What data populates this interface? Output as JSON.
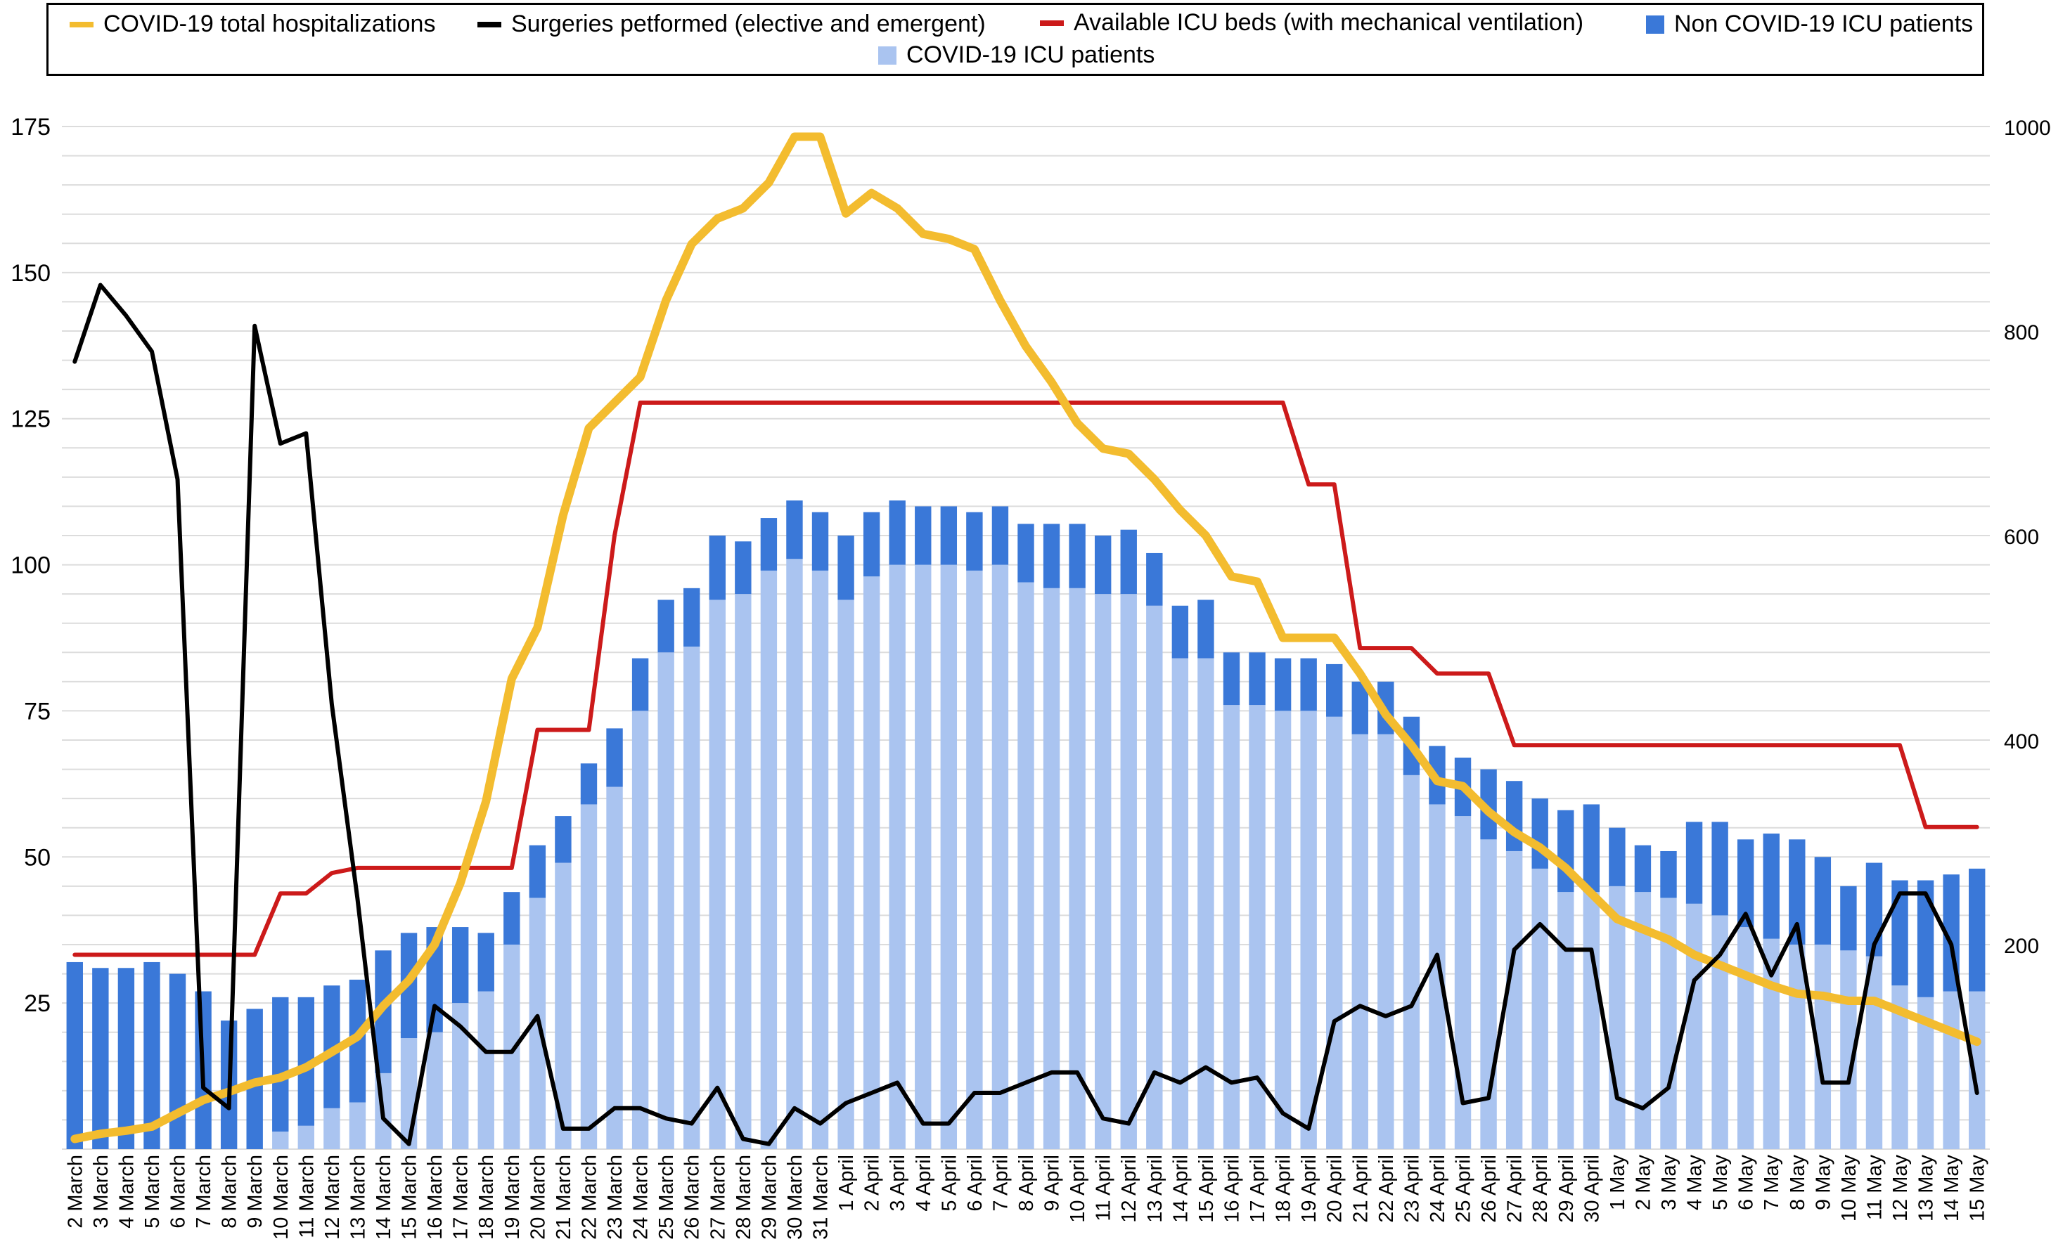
{
  "chart_data": {
    "type": "bar",
    "title": "",
    "xlabel": "",
    "ylabel": "",
    "y_left_ticks": [
      "175",
      "150",
      "125",
      "100",
      "75",
      "50",
      "25"
    ],
    "y_left_lim": [
      0,
      175
    ],
    "y_right_ticks": [
      "1000",
      "800",
      "600",
      "400",
      "200"
    ],
    "y_right_lim": [
      0,
      1000
    ],
    "grid": "horizontal",
    "legend_position": "top",
    "categories": [
      "2 March",
      "3 March",
      "4 March",
      "5 March",
      "6 March",
      "7 March",
      "8 March",
      "9 March",
      "10 March",
      "11 March",
      "12 March",
      "13 March",
      "14 March",
      "15 March",
      "16 March",
      "17 March",
      "18 March",
      "19 March",
      "20 March",
      "21 March",
      "22 March",
      "23 March",
      "24 March",
      "25 March",
      "26 March",
      "27 March",
      "28 March",
      "29 March",
      "30 March",
      "31 March",
      "1 April",
      "2 April",
      "3 April",
      "4 April",
      "5 April",
      "6 April",
      "7 April",
      "8 April",
      "9 April",
      "10 April",
      "11 April",
      "12 April",
      "13 April",
      "14 April",
      "15 April",
      "16 April",
      "17 April",
      "18 April",
      "19 April",
      "20 April",
      "21 April",
      "22 April",
      "23 April",
      "24 April",
      "25 April",
      "26 April",
      "27 April",
      "28 April",
      "29 April",
      "30 April",
      "1 May",
      "2 May",
      "3 May",
      "4 May",
      "5 May",
      "6 May",
      "7 May",
      "8 May",
      "9 May",
      "10 May",
      "11 May",
      "12 May",
      "13 May",
      "14 May",
      "15 May"
    ],
    "series": [
      {
        "name": "COVID-19 ICU patients",
        "type": "bar",
        "stack": "icu",
        "axis": "left",
        "color": "#aac4f0",
        "values": [
          0,
          0,
          0,
          0,
          0,
          0,
          0,
          0,
          3,
          4,
          7,
          8,
          13,
          19,
          20,
          25,
          27,
          35,
          43,
          49,
          59,
          62,
          75,
          85,
          86,
          94,
          95,
          99,
          101,
          99,
          94,
          98,
          100,
          100,
          100,
          99,
          100,
          97,
          96,
          96,
          95,
          95,
          93,
          84,
          84,
          76,
          76,
          75,
          75,
          74,
          71,
          71,
          64,
          59,
          57,
          53,
          51,
          48,
          44,
          44,
          45,
          44,
          43,
          42,
          40,
          38,
          36,
          35,
          35,
          34,
          33,
          28,
          26,
          27,
          27
        ]
      },
      {
        "name": "Non COVID-19 ICU patients",
        "type": "bar",
        "stack": "icu",
        "axis": "left",
        "color": "#3a78d8",
        "values": [
          32,
          31,
          31,
          32,
          30,
          27,
          22,
          24,
          23,
          22,
          21,
          21,
          21,
          18,
          18,
          13,
          10,
          9,
          9,
          8,
          7,
          10,
          9,
          9,
          10,
          11,
          9,
          9,
          10,
          10,
          11,
          11,
          11,
          10,
          10,
          10,
          10,
          10,
          11,
          11,
          10,
          11,
          9,
          9,
          10,
          9,
          9,
          9,
          9,
          9,
          9,
          9,
          10,
          10,
          10,
          12,
          12,
          12,
          14,
          15,
          10,
          8,
          8,
          14,
          16,
          15,
          18,
          18,
          15,
          11,
          16,
          18,
          20,
          20,
          21
        ]
      },
      {
        "name": "COVID-19 total hospitalizations",
        "type": "line",
        "axis": "right",
        "color": "#f3bc2f",
        "values": [
          10,
          15,
          18,
          22,
          35,
          48,
          56,
          65,
          70,
          80,
          95,
          110,
          140,
          165,
          200,
          260,
          340,
          460,
          510,
          620,
          705,
          730,
          755,
          830,
          885,
          910,
          920,
          945,
          990,
          990,
          915,
          935,
          920,
          895,
          890,
          880,
          830,
          785,
          750,
          710,
          685,
          680,
          655,
          625,
          600,
          560,
          555,
          500,
          500,
          500,
          465,
          425,
          395,
          360,
          355,
          330,
          310,
          295,
          275,
          250,
          225,
          215,
          205,
          190,
          180,
          170,
          160,
          152,
          150,
          145,
          145,
          135,
          125,
          115,
          105
        ]
      },
      {
        "name": "Surgeries petformed (elective and emergent)",
        "type": "line",
        "axis": "right",
        "color": "#000000",
        "values": [
          770,
          845,
          815,
          780,
          655,
          60,
          40,
          805,
          690,
          700,
          435,
          245,
          30,
          5,
          140,
          120,
          95,
          95,
          130,
          20,
          20,
          40,
          40,
          30,
          25,
          60,
          10,
          5,
          40,
          25,
          45,
          55,
          65,
          25,
          25,
          55,
          55,
          65,
          75,
          75,
          30,
          25,
          75,
          65,
          80,
          65,
          70,
          35,
          20,
          125,
          140,
          130,
          140,
          190,
          45,
          50,
          195,
          220,
          195,
          195,
          50,
          40,
          60,
          165,
          190,
          230,
          170,
          220,
          65,
          65,
          200,
          250,
          250,
          200,
          55
        ]
      },
      {
        "name": "Available ICU beds (with mechanical ventilation)",
        "type": "line",
        "axis": "right",
        "color": "#cc1a1a",
        "values": [
          190,
          190,
          190,
          190,
          190,
          190,
          190,
          190,
          250,
          250,
          270,
          275,
          275,
          275,
          275,
          275,
          275,
          275,
          410,
          410,
          410,
          600,
          730,
          730,
          730,
          730,
          730,
          730,
          730,
          730,
          730,
          730,
          730,
          730,
          730,
          730,
          730,
          730,
          730,
          730,
          730,
          730,
          730,
          730,
          730,
          730,
          730,
          730,
          650,
          650,
          490,
          490,
          490,
          465,
          465,
          465,
          395,
          395,
          395,
          395,
          395,
          395,
          395,
          395,
          395,
          395,
          395,
          395,
          395,
          395,
          395,
          395,
          315,
          315,
          315
        ]
      }
    ]
  }
}
